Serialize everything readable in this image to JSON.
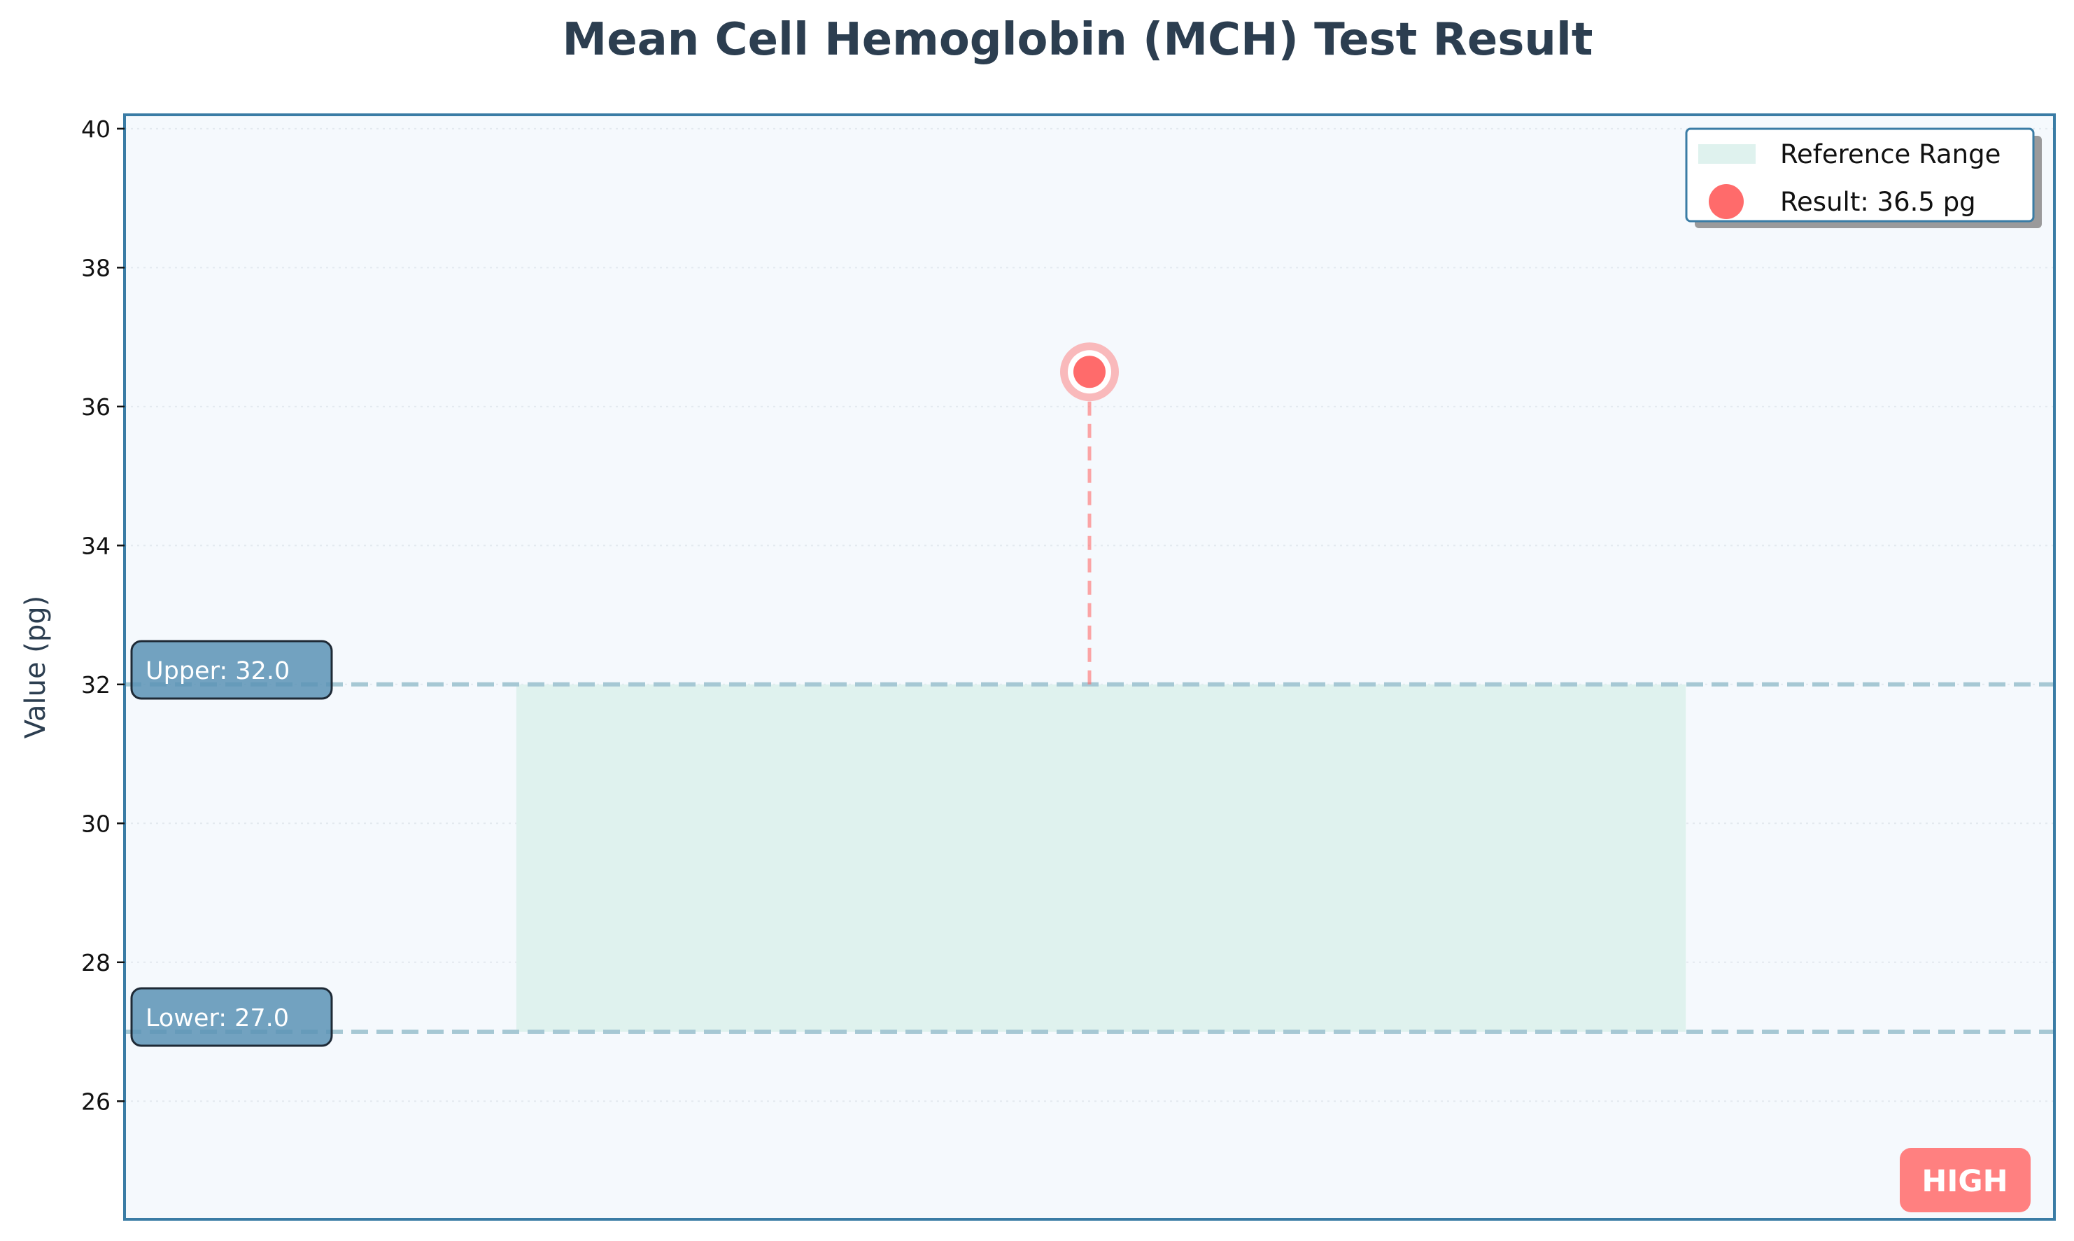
{
  "chart_data": {
    "type": "scatter",
    "title": "Mean Cell Hemoglobin (MCH) Test Result",
    "ylabel": "Value (pg)",
    "xlabel": "",
    "ylim": [
      24.3,
      40.2
    ],
    "yticks": [
      26,
      28,
      30,
      32,
      34,
      36,
      38,
      40
    ],
    "grid": true,
    "legend_position": "top-right",
    "reference_range": {
      "lower": 27.0,
      "upper": 32.0,
      "label": "Reference Range"
    },
    "result": {
      "value": 36.5,
      "unit": "pg",
      "label": "Result: 36.5 pg"
    },
    "limit_labels": {
      "upper": "Upper: 32.0",
      "lower": "Lower: 27.0"
    },
    "status": "HIGH",
    "colors": {
      "title": "#2c3e50",
      "plot_background": "#f5f9fd",
      "frame": "#3a7ca5",
      "reference_fill": "#dff2ee",
      "limit_line": "#a6c8d4",
      "result_point": "#ff6b6b",
      "limit_badge": "#5b93b5",
      "status_badge": "#ff8080"
    }
  }
}
